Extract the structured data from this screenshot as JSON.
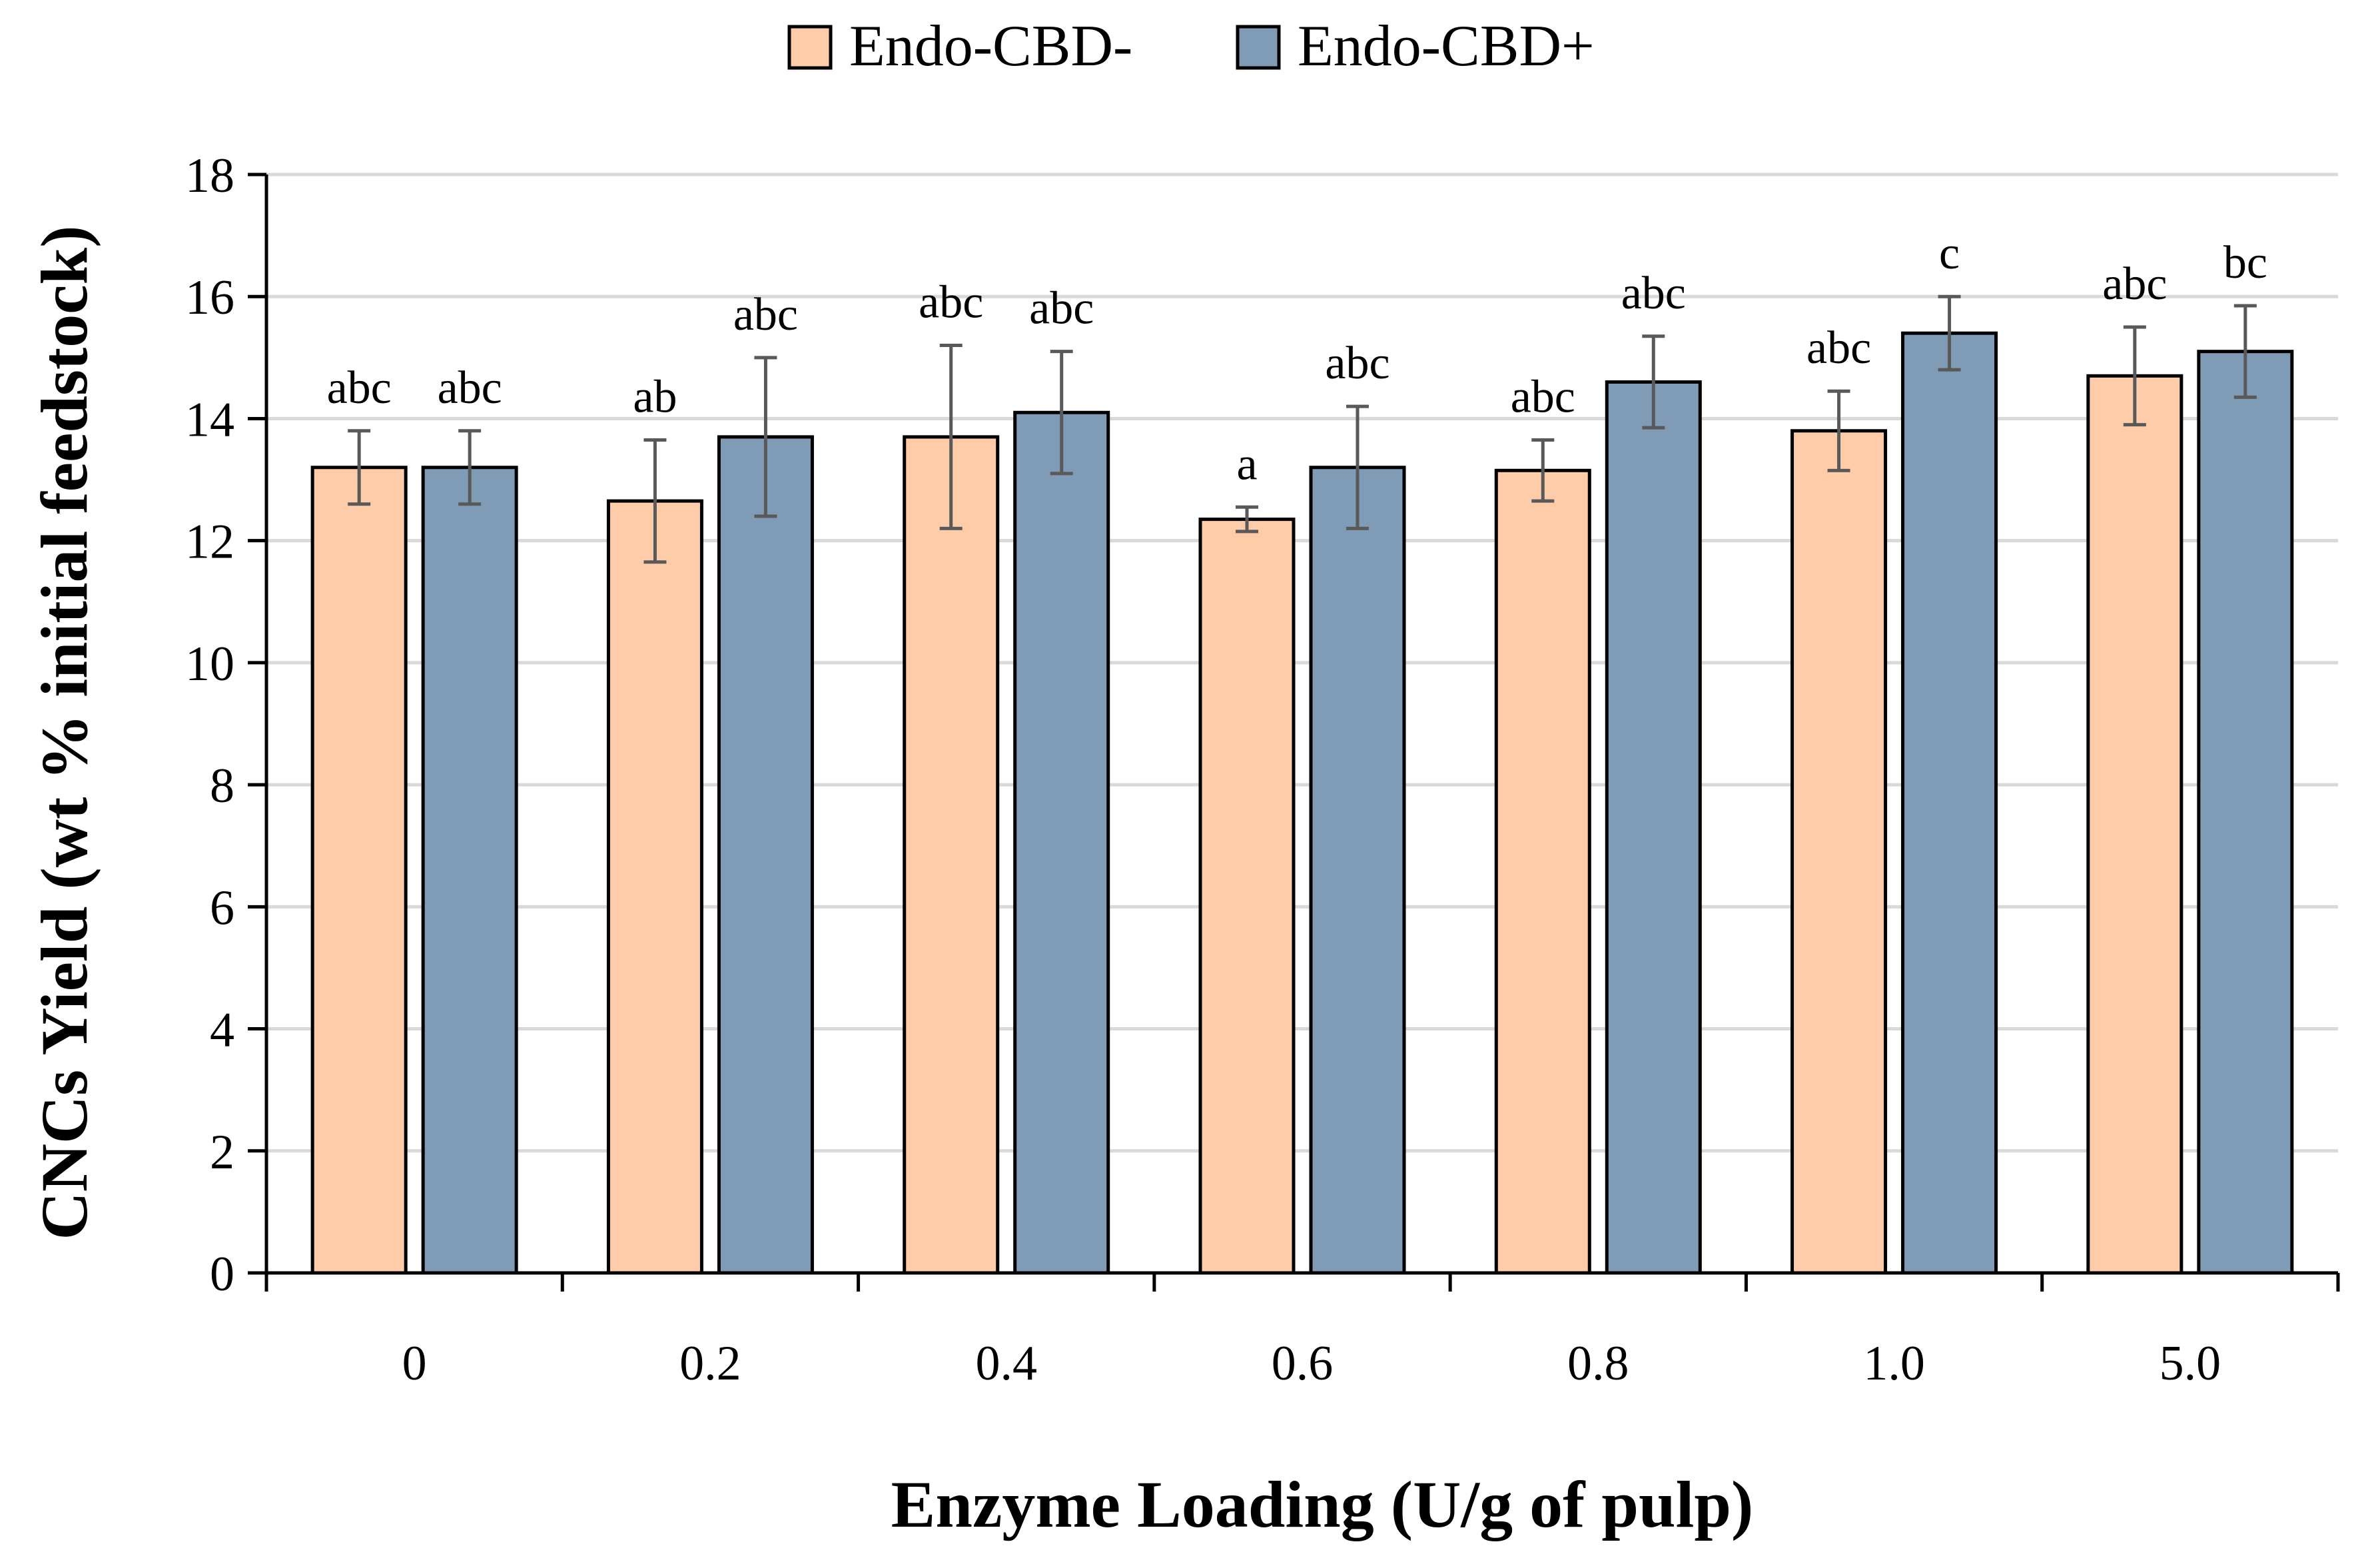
{
  "chart_data": {
    "type": "bar",
    "title": "",
    "xlabel": "Enzyme Loading (U/g of pulp)",
    "ylabel": "CNCs Yield (wt % initial feedstock)",
    "ylim": [
      0,
      18
    ],
    "yticks": [
      "0",
      "2",
      "4",
      "6",
      "8",
      "10",
      "12",
      "14",
      "16",
      "18"
    ],
    "grid": true,
    "legend_position": "top-center",
    "categories": [
      "0",
      "0.2",
      "0.4",
      "0.6",
      "0.8",
      "1.0",
      "5.0"
    ],
    "series": [
      {
        "name": "Endo-CBD-",
        "color": "#FFCCAA",
        "values": [
          13.2,
          12.65,
          13.7,
          12.35,
          13.15,
          13.8,
          14.7
        ],
        "errors": [
          0.6,
          1.0,
          1.5,
          0.2,
          0.5,
          0.65,
          0.8
        ],
        "labels": [
          "abc",
          "ab",
          "abc",
          "a",
          "abc",
          "abc",
          "abc"
        ]
      },
      {
        "name": "Endo-CBD+",
        "color": "#7F9BB5",
        "values": [
          13.2,
          13.7,
          14.1,
          13.2,
          14.6,
          15.4,
          15.1
        ],
        "errors": [
          0.6,
          1.3,
          1.0,
          1.0,
          0.75,
          0.6,
          0.75
        ],
        "labels": [
          "abc",
          "abc",
          "abc",
          "abc",
          "abc",
          "c",
          "bc"
        ]
      }
    ]
  }
}
